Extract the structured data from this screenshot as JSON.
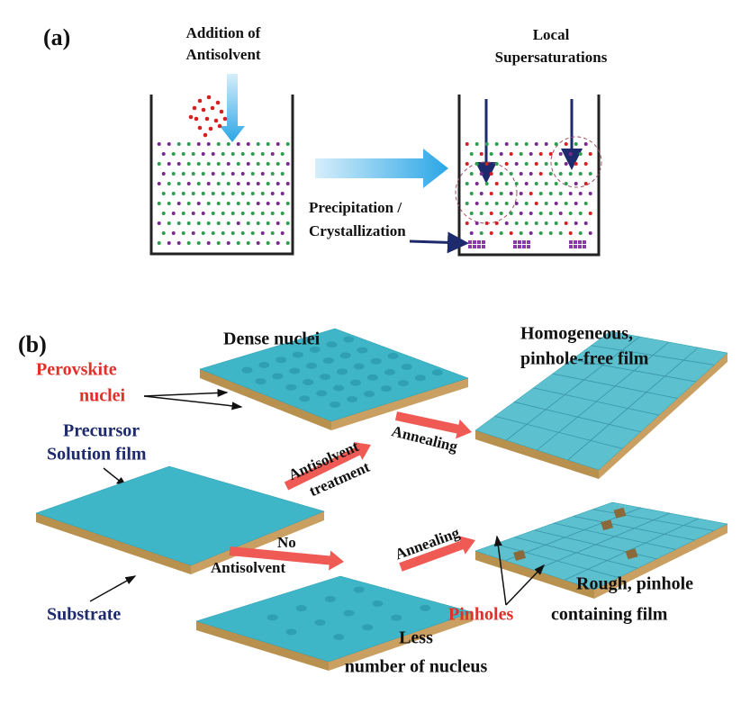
{
  "panel_a": {
    "label": "(a)",
    "addition_label": [
      "Addition of",
      "Antisolvent"
    ],
    "supersaturation_label": [
      "Local",
      "Supersaturations"
    ],
    "precipitation_label": [
      "Precipitation /",
      "Crystallization"
    ]
  },
  "panel_b": {
    "label": "(b)",
    "dense_nuclei": "Dense nuclei",
    "homogeneous_label": [
      "Homogeneous,",
      "pinhole-free film"
    ],
    "perovskite_nuclei_label": [
      "Perovskite",
      "nuclei"
    ],
    "precursor_label": [
      "Precursor",
      "Solution film"
    ],
    "antisolvent_treatment_label": [
      "Antisolvent",
      "treatment"
    ],
    "annealing_top": "Annealing",
    "no_antisolvent_label": [
      "No",
      "Antisolvent"
    ],
    "annealing_bottom": "Annealing",
    "substrate_label": "Substrate",
    "rough_label": [
      "Rough,  pinhole",
      "containing film"
    ],
    "pinholes_label": "Pinholes",
    "less_nucleus_label": [
      "Less",
      "number of nucleus"
    ]
  }
}
